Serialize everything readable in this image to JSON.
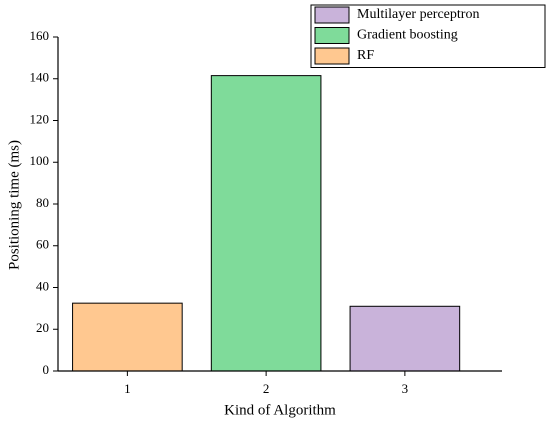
{
  "chart_data": {
    "type": "bar",
    "x_label": "Kind of Algorithm",
    "y_label": "Positioning time (ms)",
    "x": [
      1,
      2,
      3
    ],
    "xlim": [
      0.5,
      3.7
    ],
    "xticks": [
      1,
      2,
      3
    ],
    "ylim": [
      0,
      160
    ],
    "yticks": [
      0,
      20,
      40,
      60,
      80,
      100,
      120,
      140,
      160
    ],
    "series": [
      {
        "name": "Multilayer perceptron",
        "color": "#c9b3da",
        "values": [
          null,
          null,
          31
        ]
      },
      {
        "name": "Gradient boosting",
        "color": "#7fdb9a",
        "values": [
          null,
          141.5,
          null
        ]
      },
      {
        "name": "RF",
        "color": "#ffc890",
        "values": [
          32.5,
          null,
          null
        ]
      }
    ]
  }
}
